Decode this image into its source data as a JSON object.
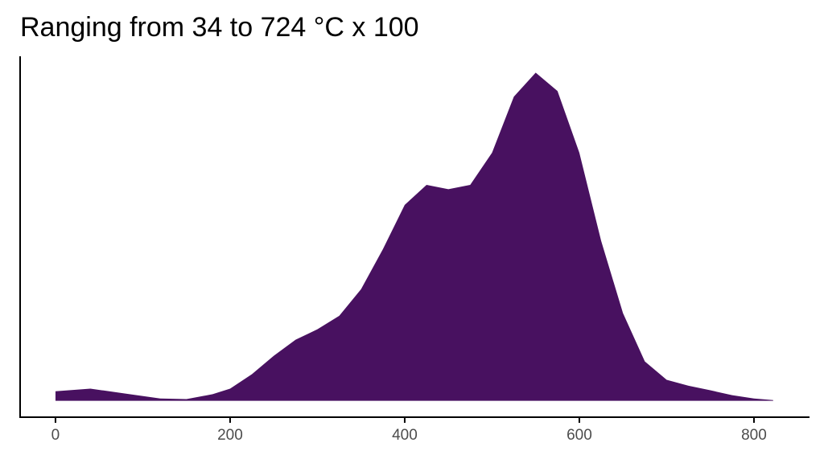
{
  "chart_data": {
    "type": "area",
    "title": "Ranging from 34 to 724 °C x 100",
    "color": "#481160",
    "x": [
      0,
      40,
      80,
      120,
      150,
      180,
      200,
      225,
      250,
      275,
      300,
      325,
      350,
      375,
      400,
      425,
      450,
      475,
      500,
      525,
      550,
      575,
      600,
      625,
      650,
      675,
      700,
      725,
      750,
      775,
      800,
      822
    ],
    "values": [
      0.029,
      0.037,
      0.022,
      0.007,
      0.005,
      0.02,
      0.037,
      0.081,
      0.137,
      0.186,
      0.218,
      0.259,
      0.34,
      0.462,
      0.597,
      0.658,
      0.645,
      0.658,
      0.756,
      0.927,
      1.0,
      0.944,
      0.756,
      0.487,
      0.267,
      0.12,
      0.064,
      0.046,
      0.032,
      0.017,
      0.007,
      0.002
    ],
    "xlim": [
      -40.5,
      862.7
    ],
    "xticks": [
      0,
      200,
      400,
      600,
      800
    ],
    "ylim": [
      -0.05,
      1.05
    ]
  }
}
